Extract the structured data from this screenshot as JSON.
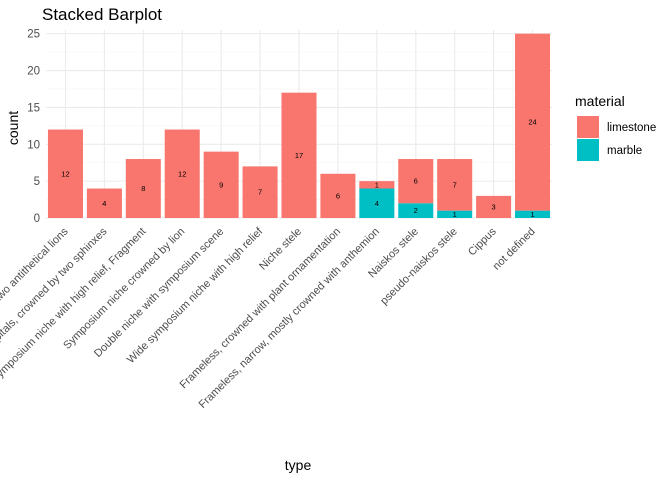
{
  "chart_data": {
    "type": "bar",
    "stacked": true,
    "title": "Stacked Barplot",
    "xlabel": "type",
    "ylabel": "count",
    "ylim": [
      0,
      25.5
    ],
    "yticks": [
      0,
      5,
      10,
      15,
      20,
      25
    ],
    "grid": true,
    "legend_position": "right",
    "legend_title": "material",
    "categories": [
      "Stele with two antithetical lions",
      "Stele with pilasters and capitals, crowned by two sphinxes",
      "Symposium niche with high relief, Fragment",
      "Symposium niche crowned by lion",
      "Double niche with symposium scene",
      "Wide symposium niche with high relief",
      "Niche stele",
      "Frameless, crowned with plant ornamentation",
      "Frameless, narrow, mostly crowned with anthemion",
      "Naiskos stele",
      "pseudo-naiskos stele",
      "Cippus",
      "not defined"
    ],
    "series": [
      {
        "name": "limestone",
        "color": "#F8766D",
        "values": [
          12,
          4,
          8,
          12,
          9,
          7,
          17,
          6,
          1,
          6,
          7,
          3,
          24
        ]
      },
      {
        "name": "marble",
        "color": "#00BFC4",
        "values": [
          0,
          0,
          0,
          0,
          0,
          0,
          0,
          0,
          4,
          2,
          1,
          0,
          1
        ]
      }
    ]
  }
}
